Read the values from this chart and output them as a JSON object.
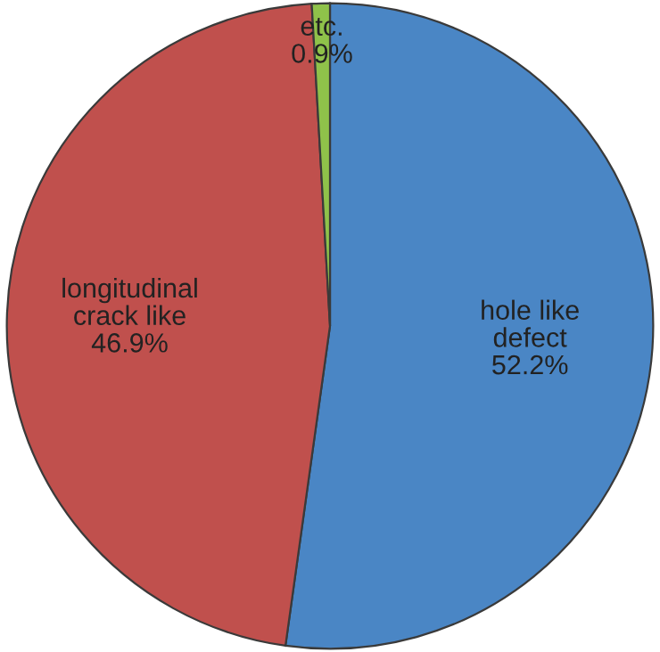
{
  "chart_data": {
    "type": "pie",
    "categories": [
      "hole like\ndefect",
      "longitudinal\ncrack like",
      "etc."
    ],
    "values": [
      52.2,
      46.9,
      0.9
    ],
    "value_labels": [
      "52.2%",
      "46.9%",
      "0.9%"
    ],
    "colors": [
      "#4a86c5",
      "#c0504d",
      "#8fc24a"
    ],
    "legend": false
  }
}
